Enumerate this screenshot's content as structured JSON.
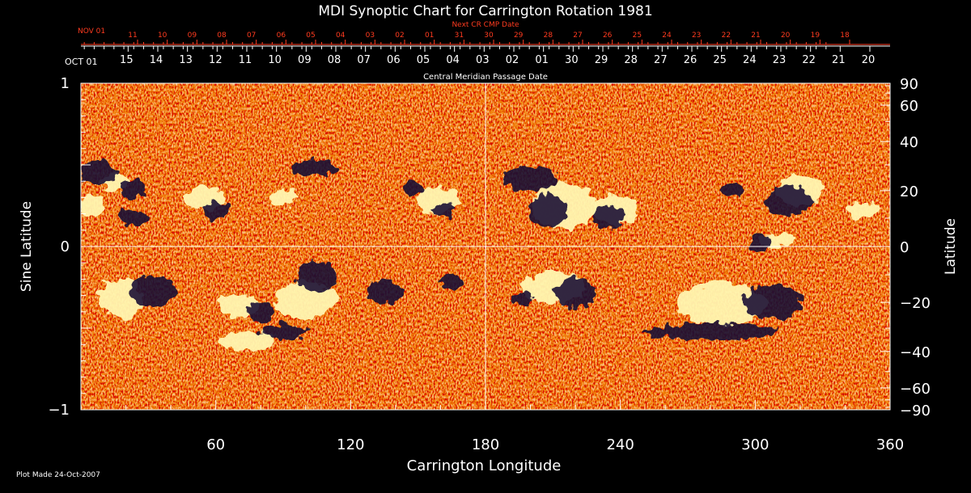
{
  "chart_data": {
    "type": "heatmap",
    "title": "MDI Synoptic Chart for Carrington Rotation 1981",
    "xlabel": "Carrington Longitude",
    "ylabel_left": "Sine Latitude",
    "ylabel_right": "Latitude",
    "xlim": [
      0,
      360
    ],
    "ylim": [
      -1,
      1
    ],
    "x_ticks": [
      60,
      120,
      180,
      240,
      300,
      360
    ],
    "y_ticks_left": [
      {
        "value": 1,
        "label": "1"
      },
      {
        "value": 0,
        "label": "0"
      },
      {
        "value": -1,
        "label": "−1"
      }
    ],
    "y_ticks_right": [
      {
        "deg": 90,
        "label": "90"
      },
      {
        "deg": 60,
        "label": "60"
      },
      {
        "deg": 40,
        "label": "40"
      },
      {
        "deg": 20,
        "label": "20"
      },
      {
        "deg": 0,
        "label": "0"
      },
      {
        "deg": -20,
        "label": "−20"
      },
      {
        "deg": -40,
        "label": "−40"
      },
      {
        "deg": -60,
        "label": "−60"
      },
      {
        "deg": -90,
        "label": "−90"
      }
    ],
    "cmp_axis": {
      "label": "Central Meridian Passage Date",
      "start_label": "OCT 01",
      "dates": [
        {
          "lon": 21,
          "label": "15"
        },
        {
          "lon": 34.2,
          "label": "14"
        },
        {
          "lon": 47.4,
          "label": "13"
        },
        {
          "lon": 60.6,
          "label": "12"
        },
        {
          "lon": 73.8,
          "label": "11"
        },
        {
          "lon": 87,
          "label": "10"
        },
        {
          "lon": 100.2,
          "label": "09"
        },
        {
          "lon": 113.4,
          "label": "08"
        },
        {
          "lon": 126.6,
          "label": "07"
        },
        {
          "lon": 139.8,
          "label": "06"
        },
        {
          "lon": 153,
          "label": "05"
        },
        {
          "lon": 166.2,
          "label": "04"
        },
        {
          "lon": 179.4,
          "label": "03"
        },
        {
          "lon": 192.6,
          "label": "02"
        },
        {
          "lon": 205.8,
          "label": "01"
        },
        {
          "lon": 219,
          "label": "30"
        },
        {
          "lon": 232.2,
          "label": "29"
        },
        {
          "lon": 245.4,
          "label": "28"
        },
        {
          "lon": 258.6,
          "label": "27"
        },
        {
          "lon": 271.8,
          "label": "26"
        },
        {
          "lon": 285,
          "label": "25"
        },
        {
          "lon": 298.2,
          "label": "24"
        },
        {
          "lon": 311.4,
          "label": "23"
        },
        {
          "lon": 324.6,
          "label": "22"
        },
        {
          "lon": 337.8,
          "label": "21"
        },
        {
          "lon": 351,
          "label": "20"
        }
      ]
    },
    "next_cr_axis": {
      "label": "Next CR CMP Date",
      "start_label": "NOV 01",
      "dates": [
        {
          "lon": 25.2,
          "label": "11"
        },
        {
          "lon": 38.4,
          "label": "10"
        },
        {
          "lon": 51.6,
          "label": "09"
        },
        {
          "lon": 64.8,
          "label": "08"
        },
        {
          "lon": 78,
          "label": "07"
        },
        {
          "lon": 91.2,
          "label": "06"
        },
        {
          "lon": 104.4,
          "label": "05"
        },
        {
          "lon": 117.6,
          "label": "04"
        },
        {
          "lon": 130.8,
          "label": "03"
        },
        {
          "lon": 144,
          "label": "02"
        },
        {
          "lon": 157.2,
          "label": "01"
        },
        {
          "lon": 170.4,
          "label": "31"
        },
        {
          "lon": 183.6,
          "label": "30"
        },
        {
          "lon": 196.8,
          "label": "29"
        },
        {
          "lon": 210,
          "label": "28"
        },
        {
          "lon": 223.2,
          "label": "27"
        },
        {
          "lon": 236.4,
          "label": "26"
        },
        {
          "lon": 249.6,
          "label": "25"
        },
        {
          "lon": 262.8,
          "label": "24"
        },
        {
          "lon": 276,
          "label": "23"
        },
        {
          "lon": 289.2,
          "label": "22"
        },
        {
          "lon": 302.4,
          "label": "21"
        },
        {
          "lon": 315.6,
          "label": "20"
        },
        {
          "lon": 328.8,
          "label": "19"
        },
        {
          "lon": 342,
          "label": "18"
        }
      ]
    },
    "features": [
      {
        "polarity": "positive",
        "lon": 5,
        "sinlat": 0.25,
        "rlon": 6,
        "rsin": 0.07
      },
      {
        "polarity": "positive",
        "lon": 15,
        "sinlat": 0.4,
        "rlon": 7,
        "rsin": 0.05
      },
      {
        "polarity": "negative",
        "lon": 8,
        "sinlat": 0.45,
        "rlon": 8,
        "rsin": 0.08
      },
      {
        "polarity": "negative",
        "lon": 23,
        "sinlat": 0.35,
        "rlon": 6,
        "rsin": 0.06
      },
      {
        "polarity": "negative",
        "lon": 23,
        "sinlat": 0.18,
        "rlon": 6,
        "rsin": 0.05
      },
      {
        "polarity": "positive",
        "lon": 55,
        "sinlat": 0.3,
        "rlon": 9,
        "rsin": 0.08
      },
      {
        "polarity": "negative",
        "lon": 60,
        "sinlat": 0.22,
        "rlon": 6,
        "rsin": 0.05
      },
      {
        "polarity": "positive",
        "lon": 90,
        "sinlat": 0.3,
        "rlon": 6,
        "rsin": 0.05
      },
      {
        "polarity": "negative",
        "lon": 104,
        "sinlat": 0.48,
        "rlon": 10,
        "rsin": 0.05
      },
      {
        "polarity": "positive",
        "lon": 158,
        "sinlat": 0.28,
        "rlon": 10,
        "rsin": 0.08
      },
      {
        "polarity": "negative",
        "lon": 148,
        "sinlat": 0.36,
        "rlon": 5,
        "rsin": 0.04
      },
      {
        "polarity": "negative",
        "lon": 162,
        "sinlat": 0.22,
        "rlon": 5,
        "rsin": 0.04
      },
      {
        "polarity": "positive",
        "lon": 18,
        "sinlat": -0.32,
        "rlon": 10,
        "rsin": 0.12
      },
      {
        "polarity": "negative",
        "lon": 32,
        "sinlat": -0.28,
        "rlon": 10,
        "rsin": 0.1
      },
      {
        "polarity": "positive",
        "lon": 70,
        "sinlat": -0.36,
        "rlon": 9,
        "rsin": 0.07
      },
      {
        "polarity": "positive",
        "lon": 74,
        "sinlat": -0.58,
        "rlon": 12,
        "rsin": 0.06
      },
      {
        "polarity": "positive",
        "lon": 100,
        "sinlat": -0.33,
        "rlon": 14,
        "rsin": 0.11
      },
      {
        "polarity": "negative",
        "lon": 80,
        "sinlat": -0.4,
        "rlon": 6,
        "rsin": 0.07
      },
      {
        "polarity": "negative",
        "lon": 105,
        "sinlat": -0.18,
        "rlon": 9,
        "rsin": 0.09
      },
      {
        "polarity": "negative",
        "lon": 90,
        "sinlat": -0.52,
        "rlon": 10,
        "rsin": 0.05
      },
      {
        "polarity": "negative",
        "lon": 135,
        "sinlat": -0.28,
        "rlon": 8,
        "rsin": 0.07
      },
      {
        "polarity": "negative",
        "lon": 165,
        "sinlat": -0.22,
        "rlon": 5,
        "rsin": 0.05
      },
      {
        "polarity": "positive",
        "lon": 215,
        "sinlat": 0.25,
        "rlon": 14,
        "rsin": 0.14
      },
      {
        "polarity": "negative",
        "lon": 200,
        "sinlat": 0.42,
        "rlon": 12,
        "rsin": 0.08
      },
      {
        "polarity": "negative",
        "lon": 208,
        "sinlat": 0.22,
        "rlon": 9,
        "rsin": 0.1
      },
      {
        "polarity": "positive",
        "lon": 238,
        "sinlat": 0.22,
        "rlon": 10,
        "rsin": 0.09
      },
      {
        "polarity": "negative",
        "lon": 235,
        "sinlat": 0.18,
        "rlon": 7,
        "rsin": 0.07
      },
      {
        "polarity": "negative",
        "lon": 290,
        "sinlat": 0.35,
        "rlon": 5,
        "rsin": 0.04
      },
      {
        "polarity": "positive",
        "lon": 320,
        "sinlat": 0.35,
        "rlon": 10,
        "rsin": 0.1
      },
      {
        "polarity": "negative",
        "lon": 315,
        "sinlat": 0.28,
        "rlon": 10,
        "rsin": 0.09
      },
      {
        "polarity": "positive",
        "lon": 348,
        "sinlat": 0.22,
        "rlon": 7,
        "rsin": 0.05
      },
      {
        "polarity": "positive",
        "lon": 310,
        "sinlat": 0.04,
        "rlon": 8,
        "rsin": 0.04
      },
      {
        "polarity": "negative",
        "lon": 302,
        "sinlat": 0.02,
        "rlon": 4,
        "rsin": 0.06
      },
      {
        "polarity": "positive",
        "lon": 210,
        "sinlat": -0.25,
        "rlon": 14,
        "rsin": 0.1
      },
      {
        "polarity": "negative",
        "lon": 220,
        "sinlat": -0.28,
        "rlon": 9,
        "rsin": 0.09
      },
      {
        "polarity": "positive",
        "lon": 285,
        "sinlat": -0.35,
        "rlon": 20,
        "rsin": 0.13
      },
      {
        "polarity": "negative",
        "lon": 308,
        "sinlat": -0.34,
        "rlon": 13,
        "rsin": 0.11
      },
      {
        "polarity": "negative",
        "lon": 280,
        "sinlat": -0.52,
        "rlon": 30,
        "rsin": 0.05
      },
      {
        "polarity": "negative",
        "lon": 196,
        "sinlat": -0.32,
        "rlon": 5,
        "rsin": 0.04
      }
    ],
    "colors": {
      "background": "#000000",
      "axes": "#ffffff",
      "next_cr": "#ff3b1f",
      "field_base": "#e04a1c",
      "positive": "#fff6b0",
      "negative": "#1b1135"
    }
  },
  "footer": {
    "plot_made": "Plot Made 24-Oct-2007"
  }
}
